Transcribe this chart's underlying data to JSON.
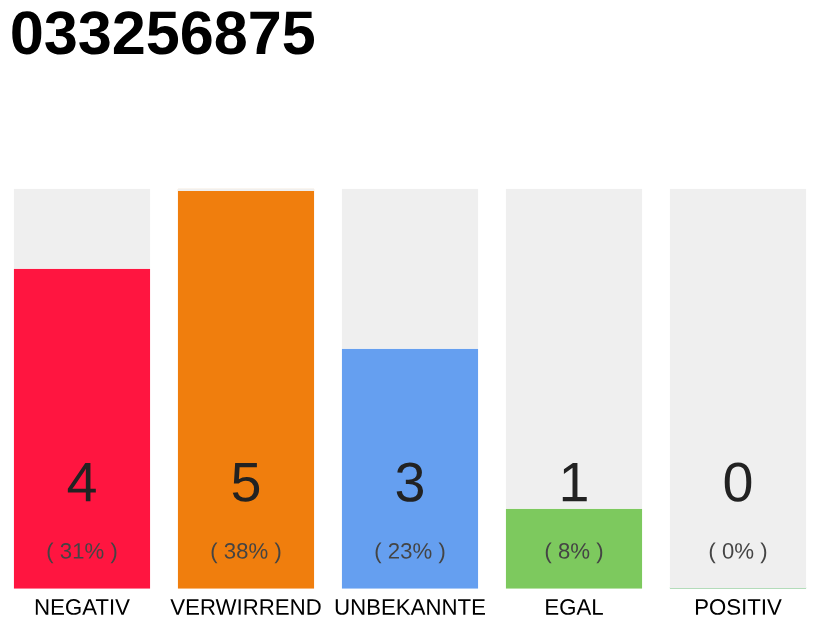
{
  "chart_data": {
    "type": "bar",
    "title": "033256875",
    "stacked": true,
    "ylim": [
      0,
      5
    ],
    "tick_labels": "x",
    "grid": false,
    "legend": false,
    "categories": [
      "NEGATIV",
      "VERWIRREND",
      "UNBEKANNTE",
      "EGAL",
      "POSITIV"
    ],
    "series": [
      {
        "colors": [
          "#ff1540",
          "#f07e0d",
          "#659ff0",
          "#7dc95e",
          "#33b04a"
        ],
        "values": [
          4,
          5,
          3,
          1,
          0
        ],
        "value_labels": [
          "4\n( 31% )",
          "5\n( 38% )",
          "3\n( 23% )",
          "1\n( 8% )",
          "0\n( 0% )"
        ]
      },
      {
        "color": "#efefef",
        "values": [
          1,
          0,
          2,
          4,
          5
        ]
      }
    ]
  }
}
